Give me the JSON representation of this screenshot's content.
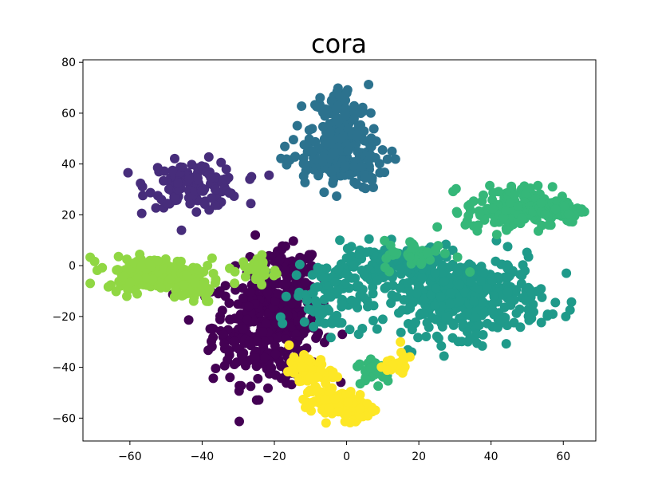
{
  "chart_data": {
    "type": "scatter",
    "title": "cora",
    "xlabel": "",
    "ylabel": "",
    "xlim": [
      -73,
      69
    ],
    "ylim": [
      -69,
      81
    ],
    "xticks": [
      -60,
      -40,
      -20,
      0,
      20,
      40,
      60
    ],
    "yticks": [
      -60,
      -40,
      -20,
      0,
      20,
      40,
      60,
      80
    ],
    "xtick_labels": [
      "−60",
      "−40",
      "−20",
      "0",
      "20",
      "40",
      "60"
    ],
    "ytick_labels": [
      "−60",
      "−40",
      "−20",
      "0",
      "20",
      "40",
      "60",
      "80"
    ],
    "grid": false,
    "legend": "none",
    "colormap": "viridis",
    "series": [
      {
        "color": "#440154",
        "clusters": [
          {
            "cx": -22,
            "cy": -24,
            "sx": 7.5,
            "sy": 11,
            "n": 380
          },
          {
            "cx": -16,
            "cy": -5,
            "sx": 4,
            "sy": 6,
            "n": 60
          }
        ]
      },
      {
        "color": "#472d7b",
        "clusters": [
          {
            "cx": -42,
            "cy": 32,
            "sx": 6.5,
            "sy": 4.5,
            "n": 130
          }
        ]
      },
      {
        "color": "#2c728e",
        "clusters": [
          {
            "cx": -2,
            "cy": 53,
            "sx": 4,
            "sy": 9,
            "n": 180
          },
          {
            "cx": -3,
            "cy": 40,
            "sx": 7,
            "sy": 5,
            "n": 110
          }
        ]
      },
      {
        "color": "#1f9a8a",
        "clusters": [
          {
            "cx": 32,
            "cy": -12,
            "sx": 11,
            "sy": 7.5,
            "n": 440
          },
          {
            "cx": 10,
            "cy": 0,
            "sx": 8,
            "sy": 4,
            "n": 110
          },
          {
            "cx": -5,
            "cy": -12,
            "sx": 5,
            "sy": 7,
            "n": 90
          }
        ]
      },
      {
        "color": "#35b779",
        "clusters": [
          {
            "cx": 45,
            "cy": 22,
            "sx": 6,
            "sy": 4.5,
            "n": 150
          },
          {
            "cx": 58,
            "cy": 22,
            "sx": 4,
            "sy": 2.5,
            "n": 70
          },
          {
            "cx": 8,
            "cy": -41,
            "sx": 2.5,
            "sy": 2.5,
            "n": 40
          },
          {
            "cx": 20,
            "cy": 4,
            "sx": 5,
            "sy": 3,
            "n": 40
          }
        ]
      },
      {
        "color": "#90d743",
        "clusters": [
          {
            "cx": -54,
            "cy": -3,
            "sx": 6.5,
            "sy": 3,
            "n": 200
          },
          {
            "cx": -42,
            "cy": -8,
            "sx": 3,
            "sy": 4,
            "n": 40
          },
          {
            "cx": -25,
            "cy": -2,
            "sx": 3,
            "sy": 3,
            "n": 30
          }
        ]
      },
      {
        "color": "#fde725",
        "clusters": [
          {
            "cx": -10,
            "cy": -42,
            "sx": 3,
            "sy": 3,
            "n": 60
          },
          {
            "cx": -5,
            "cy": -53,
            "sx": 3.5,
            "sy": 3,
            "n": 70
          },
          {
            "cx": 2,
            "cy": -56,
            "sx": 3,
            "sy": 2.5,
            "n": 60
          },
          {
            "cx": 14,
            "cy": -39,
            "sx": 2.5,
            "sy": 2.5,
            "n": 25
          }
        ]
      }
    ]
  }
}
